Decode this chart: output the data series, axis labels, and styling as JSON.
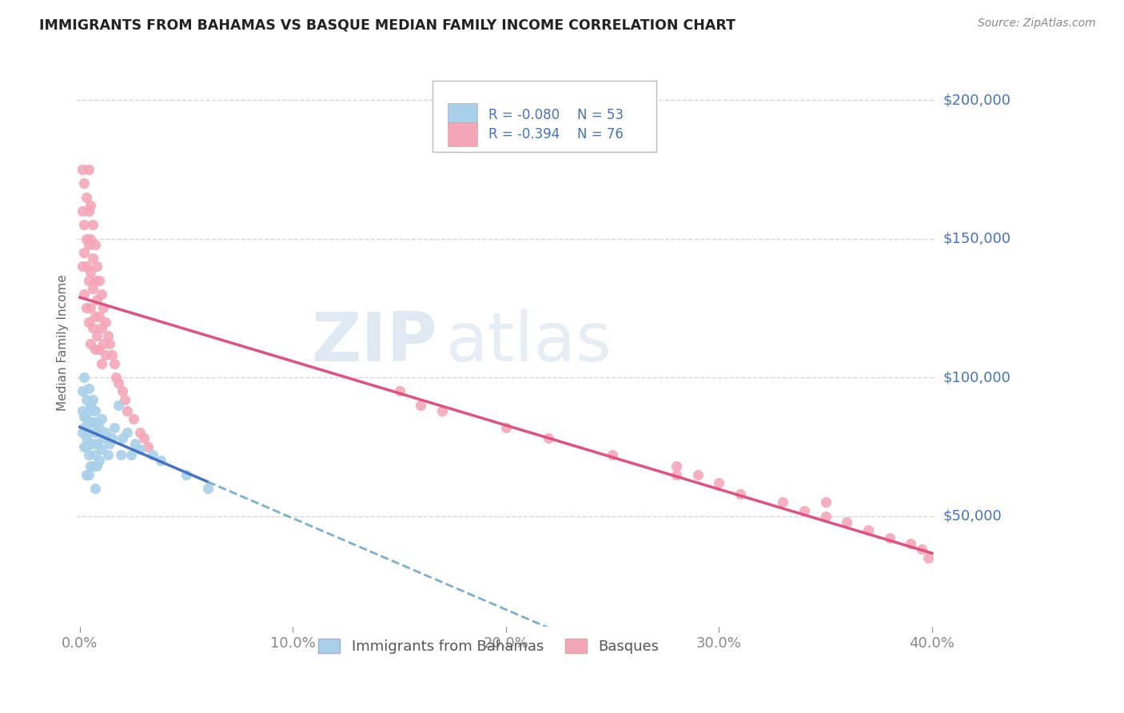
{
  "title": "IMMIGRANTS FROM BAHAMAS VS BASQUE MEDIAN FAMILY INCOME CORRELATION CHART",
  "source": "Source: ZipAtlas.com",
  "ylabel": "Median Family Income",
  "xlim": [
    -0.002,
    0.402
  ],
  "ylim": [
    10000,
    215000
  ],
  "yticks": [
    50000,
    100000,
    150000,
    200000
  ],
  "ytick_labels": [
    "$50,000",
    "$100,000",
    "$150,000",
    "$200,000"
  ],
  "xticks": [
    0.0,
    0.1,
    0.2,
    0.3,
    0.4
  ],
  "xtick_labels": [
    "0.0%",
    "10.0%",
    "20.0%",
    "30.0%",
    "40.0%"
  ],
  "series1_name": "Immigrants from Bahamas",
  "series1_color": "#a8d0e8",
  "series1_R": -0.08,
  "series1_N": 53,
  "series2_name": "Basques",
  "series2_color": "#f4a6b8",
  "series2_R": -0.394,
  "series2_N": 76,
  "blue_label_color": "#4472c4",
  "axis_label_color": "#4472c4",
  "title_color": "#222222",
  "watermark_zip": "ZIP",
  "watermark_atlas": "atlas",
  "background_color": "#ffffff",
  "grid_color": "#cccccc",
  "trend1_color": "#4472c4",
  "trend2_color": "#e05080",
  "trend_dash_color": "#7bafd4",
  "scatter1_x": [
    0.001,
    0.001,
    0.002,
    0.002,
    0.002,
    0.003,
    0.003,
    0.003,
    0.003,
    0.004,
    0.004,
    0.004,
    0.004,
    0.004,
    0.005,
    0.005,
    0.005,
    0.005,
    0.006,
    0.006,
    0.006,
    0.006,
    0.007,
    0.007,
    0.007,
    0.007,
    0.008,
    0.008,
    0.008,
    0.009,
    0.009,
    0.01,
    0.01,
    0.011,
    0.012,
    0.013,
    0.014,
    0.015,
    0.016,
    0.018,
    0.019,
    0.02,
    0.022,
    0.024,
    0.026,
    0.028,
    0.034,
    0.038,
    0.001,
    0.002,
    0.003,
    0.05,
    0.06
  ],
  "scatter1_y": [
    95000,
    80000,
    100000,
    86000,
    75000,
    92000,
    85000,
    78000,
    65000,
    96000,
    88000,
    80000,
    72000,
    65000,
    90000,
    84000,
    76000,
    68000,
    92000,
    84000,
    76000,
    68000,
    88000,
    80000,
    72000,
    60000,
    84000,
    76000,
    68000,
    82000,
    70000,
    85000,
    74000,
    78000,
    80000,
    72000,
    76000,
    78000,
    82000,
    90000,
    72000,
    78000,
    80000,
    72000,
    76000,
    74000,
    72000,
    70000,
    88000,
    82000,
    75000,
    65000,
    60000
  ],
  "scatter2_x": [
    0.001,
    0.001,
    0.001,
    0.002,
    0.002,
    0.002,
    0.002,
    0.003,
    0.003,
    0.003,
    0.003,
    0.004,
    0.004,
    0.004,
    0.004,
    0.004,
    0.005,
    0.005,
    0.005,
    0.005,
    0.005,
    0.006,
    0.006,
    0.006,
    0.006,
    0.007,
    0.007,
    0.007,
    0.007,
    0.008,
    0.008,
    0.008,
    0.009,
    0.009,
    0.009,
    0.01,
    0.01,
    0.01,
    0.011,
    0.011,
    0.012,
    0.012,
    0.013,
    0.014,
    0.015,
    0.016,
    0.017,
    0.018,
    0.02,
    0.021,
    0.022,
    0.025,
    0.028,
    0.03,
    0.032,
    0.15,
    0.16,
    0.17,
    0.2,
    0.22,
    0.25,
    0.28,
    0.29,
    0.3,
    0.31,
    0.33,
    0.34,
    0.35,
    0.36,
    0.37,
    0.38,
    0.39,
    0.395,
    0.398,
    0.35,
    0.28
  ],
  "scatter2_y": [
    175000,
    160000,
    140000,
    170000,
    155000,
    145000,
    130000,
    165000,
    150000,
    140000,
    125000,
    175000,
    160000,
    148000,
    135000,
    120000,
    162000,
    150000,
    138000,
    125000,
    112000,
    155000,
    143000,
    132000,
    118000,
    148000,
    135000,
    122000,
    110000,
    140000,
    128000,
    115000,
    135000,
    122000,
    110000,
    130000,
    118000,
    105000,
    125000,
    112000,
    120000,
    108000,
    115000,
    112000,
    108000,
    105000,
    100000,
    98000,
    95000,
    92000,
    88000,
    85000,
    80000,
    78000,
    75000,
    95000,
    90000,
    88000,
    82000,
    78000,
    72000,
    68000,
    65000,
    62000,
    58000,
    55000,
    52000,
    50000,
    48000,
    45000,
    42000,
    40000,
    38000,
    35000,
    55000,
    65000
  ]
}
